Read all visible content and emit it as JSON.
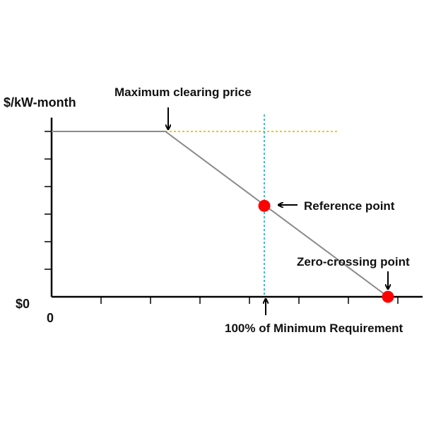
{
  "chart_data": {
    "type": "line",
    "ylabel": "$/kW-month",
    "tick_labels": {
      "x_zero": "0",
      "y_zero": "$0"
    },
    "curve": {
      "points": [
        {
          "x": 0,
          "y": 6
        },
        {
          "x": 2.3,
          "y": 6
        },
        {
          "x": 6.8,
          "y": 0
        }
      ],
      "color": "#8a8a8a"
    },
    "price_cap_line": {
      "y": 6,
      "x_end": 5.8,
      "color": "#f0c419"
    },
    "requirement_line": {
      "x": 4.3,
      "color": "#3fb7d9"
    },
    "marked_points": [
      {
        "name": "reference-point",
        "x": 4.3,
        "y": 3.3,
        "color": "#ff0000"
      },
      {
        "name": "zero-crossing-point",
        "x": 6.8,
        "y": 0,
        "color": "#ff0000"
      }
    ],
    "annotations": {
      "max_clearing_price": "Maximum clearing price",
      "reference_point": "Reference point",
      "zero_crossing_point": "Zero-crossing point",
      "min_requirement": "100% of Minimum Requirement"
    },
    "xlim": [
      0,
      7.5
    ],
    "ylim": [
      0,
      6.5
    ],
    "x_ticks": [
      1,
      2,
      3,
      4,
      5,
      6,
      7
    ],
    "y_ticks": [
      1,
      2,
      3,
      4,
      5,
      6
    ]
  }
}
